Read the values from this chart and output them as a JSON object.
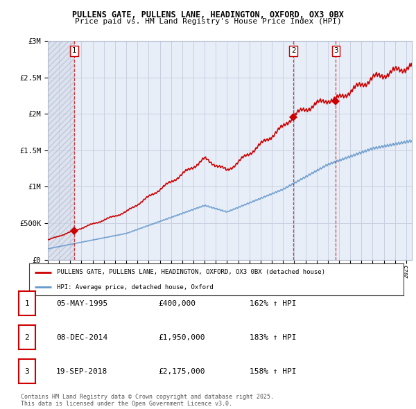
{
  "title": "PULLENS GATE, PULLENS LANE, HEADINGTON, OXFORD, OX3 0BX",
  "subtitle": "Price paid vs. HM Land Registry's House Price Index (HPI)",
  "house_color": "#cc0000",
  "hpi_color": "#6699cc",
  "background_color": "#e8eef8",
  "hatch_color": "#c8d0e0",
  "grid_color": "#c8d0e0",
  "sale_dates": [
    1995.35,
    2014.93,
    2018.72
  ],
  "sale_prices": [
    400000,
    1950000,
    2175000
  ],
  "sale_labels": [
    "1",
    "2",
    "3"
  ],
  "legend_house": "PULLENS GATE, PULLENS LANE, HEADINGTON, OXFORD, OX3 0BX (detached house)",
  "legend_hpi": "HPI: Average price, detached house, Oxford",
  "table_rows": [
    [
      "1",
      "05-MAY-1995",
      "£400,000",
      "162% ↑ HPI"
    ],
    [
      "2",
      "08-DEC-2014",
      "£1,950,000",
      "183% ↑ HPI"
    ],
    [
      "3",
      "19-SEP-2018",
      "£2,175,000",
      "158% ↑ HPI"
    ]
  ],
  "footer": "Contains HM Land Registry data © Crown copyright and database right 2025.\nThis data is licensed under the Open Government Licence v3.0.",
  "ylim": [
    0,
    3000000
  ],
  "xlim_start": 1993,
  "xlim_end": 2025.5
}
